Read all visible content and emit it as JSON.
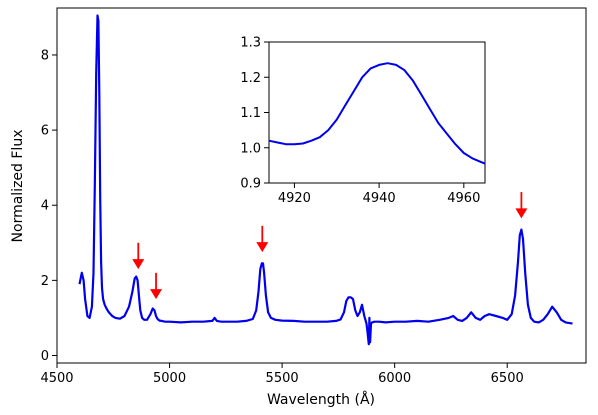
{
  "chart_data": [
    {
      "type": "line",
      "role": "main",
      "xlabel": "Wavelength (Å)",
      "ylabel": "Normalized Flux",
      "xlim": [
        4500,
        6850
      ],
      "ylim": [
        -0.2,
        9.25
      ],
      "xticks": [
        4500,
        5000,
        5500,
        6000,
        6500
      ],
      "yticks": [
        0,
        2,
        4,
        6,
        8
      ],
      "grid": false,
      "line_color": "#0000ee",
      "series": [
        {
          "x": [
            4600,
            4610,
            4618,
            4625,
            4635,
            4645,
            4655,
            4662,
            4668,
            4674,
            4680,
            4684,
            4688,
            4692,
            4696,
            4700,
            4705,
            4712,
            4720,
            4730,
            4745,
            4760,
            4780,
            4800,
            4820,
            4835,
            4845,
            4852,
            4858,
            4864,
            4870,
            4878,
            4888,
            4900,
            4915,
            4925,
            4933,
            4940,
            4947,
            4955,
            4965,
            4980,
            5000,
            5050,
            5100,
            5150,
            5190,
            5200,
            5210,
            5230,
            5260,
            5300,
            5340,
            5370,
            5385,
            5395,
            5403,
            5410,
            5415,
            5420,
            5428,
            5438,
            5450,
            5470,
            5500,
            5550,
            5600,
            5650,
            5700,
            5740,
            5760,
            5775,
            5785,
            5795,
            5805,
            5815,
            5825,
            5835,
            5845,
            5855,
            5865,
            5875,
            5880,
            5885,
            5888,
            5891,
            5895,
            5900,
            5910,
            5930,
            5960,
            6000,
            6050,
            6100,
            6150,
            6200,
            6240,
            6260,
            6280,
            6300,
            6320,
            6340,
            6360,
            6380,
            6400,
            6420,
            6450,
            6480,
            6500,
            6520,
            6535,
            6548,
            6556,
            6563,
            6570,
            6580,
            6592,
            6605,
            6620,
            6640,
            6660,
            6680,
            6700,
            6720,
            6740,
            6760,
            6790
          ],
          "y": [
            1.9,
            2.2,
            2.0,
            1.5,
            1.05,
            1.0,
            1.3,
            2.2,
            4.5,
            7.5,
            9.05,
            8.9,
            7.0,
            4.2,
            2.5,
            1.8,
            1.5,
            1.35,
            1.25,
            1.15,
            1.05,
            1.0,
            0.98,
            1.05,
            1.3,
            1.7,
            2.05,
            2.1,
            2.0,
            1.6,
            1.2,
            1.0,
            0.95,
            0.95,
            1.1,
            1.25,
            1.2,
            1.05,
            0.97,
            0.93,
            0.92,
            0.9,
            0.9,
            0.88,
            0.9,
            0.9,
            0.92,
            1.0,
            0.92,
            0.9,
            0.9,
            0.9,
            0.92,
            0.97,
            1.2,
            1.7,
            2.3,
            2.45,
            2.45,
            2.2,
            1.6,
            1.15,
            1.0,
            0.95,
            0.93,
            0.92,
            0.9,
            0.9,
            0.9,
            0.92,
            0.96,
            1.15,
            1.45,
            1.55,
            1.55,
            1.5,
            1.2,
            1.05,
            1.15,
            1.35,
            1.05,
            0.85,
            0.6,
            0.3,
            1.0,
            0.35,
            0.85,
            0.88,
            0.9,
            0.9,
            0.88,
            0.9,
            0.9,
            0.92,
            0.9,
            0.95,
            1.0,
            1.05,
            0.95,
            0.92,
            1.0,
            1.15,
            1.0,
            0.95,
            1.05,
            1.1,
            1.05,
            1.0,
            0.95,
            1.1,
            1.6,
            2.5,
            3.2,
            3.35,
            3.1,
            2.2,
            1.35,
            1.0,
            0.9,
            0.88,
            0.95,
            1.1,
            1.3,
            1.15,
            0.95,
            0.88,
            0.85
          ]
        }
      ],
      "annotations": [
        {
          "type": "arrow",
          "x": 4861,
          "y_tail": 3.0,
          "y_head": 2.3,
          "color": "#ff0000"
        },
        {
          "type": "arrow",
          "x": 4940,
          "y_tail": 2.2,
          "y_head": 1.5,
          "color": "#ff0000"
        },
        {
          "type": "arrow",
          "x": 5412,
          "y_tail": 3.45,
          "y_head": 2.75,
          "color": "#ff0000"
        },
        {
          "type": "arrow",
          "x": 6563,
          "y_tail": 4.35,
          "y_head": 3.65,
          "color": "#ff0000"
        }
      ]
    },
    {
      "type": "line",
      "role": "inset",
      "xlim": [
        4914,
        4965
      ],
      "ylim": [
        0.9,
        1.3
      ],
      "xticks": [
        4920,
        4940,
        4960
      ],
      "yticks": [
        0.9,
        1.0,
        1.1,
        1.2,
        1.3
      ],
      "yticklabels": [
        "0.9",
        "1.0",
        "1.1",
        "1.2",
        "1.3"
      ],
      "grid": false,
      "line_color": "#0000ee",
      "series": [
        {
          "x": [
            4914,
            4916,
            4918,
            4920,
            4922,
            4924,
            4926,
            4928,
            4930,
            4932,
            4934,
            4936,
            4938,
            4940,
            4942,
            4944,
            4946,
            4948,
            4950,
            4952,
            4954,
            4956,
            4958,
            4960,
            4962,
            4964,
            4965
          ],
          "y": [
            1.02,
            1.015,
            1.01,
            1.01,
            1.012,
            1.02,
            1.03,
            1.05,
            1.08,
            1.12,
            1.16,
            1.2,
            1.225,
            1.235,
            1.24,
            1.235,
            1.22,
            1.19,
            1.15,
            1.11,
            1.07,
            1.04,
            1.01,
            0.985,
            0.97,
            0.96,
            0.955
          ]
        }
      ]
    }
  ]
}
